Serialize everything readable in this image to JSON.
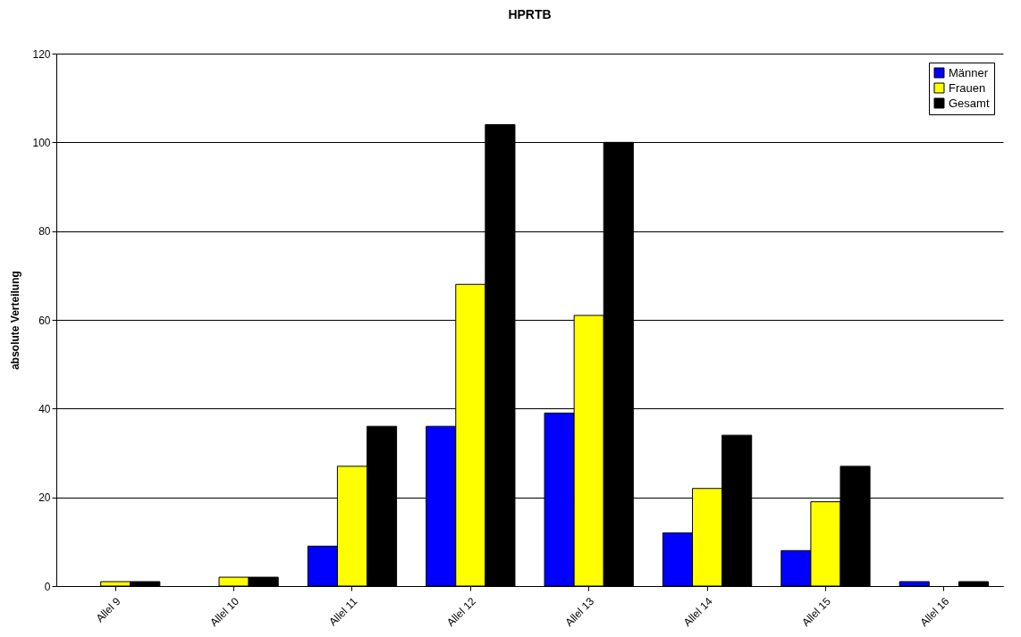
{
  "chart_data": {
    "type": "bar",
    "title": "HPRTB",
    "ylabel": "absolute Verteilung",
    "categories": [
      "Allel 9",
      "Allel 10",
      "Allel 11",
      "Allel 12",
      "Allel 13",
      "Allel 14",
      "Allel 15",
      "Allel 16"
    ],
    "series": [
      {
        "name": "Männer",
        "color": "#0000ff",
        "values": [
          0,
          0,
          9,
          36,
          39,
          12,
          8,
          1
        ]
      },
      {
        "name": "Frauen",
        "color": "#ffff00",
        "values": [
          1,
          2,
          27,
          68,
          61,
          22,
          19,
          0
        ]
      },
      {
        "name": "Gesamt",
        "color": "#000000",
        "values": [
          1,
          2,
          36,
          104,
          100,
          34,
          27,
          1
        ]
      }
    ],
    "ylim": [
      0,
      120
    ],
    "yticks": [
      0,
      20,
      40,
      60,
      80,
      100,
      120
    ],
    "grid": "y",
    "legend": "top right"
  }
}
